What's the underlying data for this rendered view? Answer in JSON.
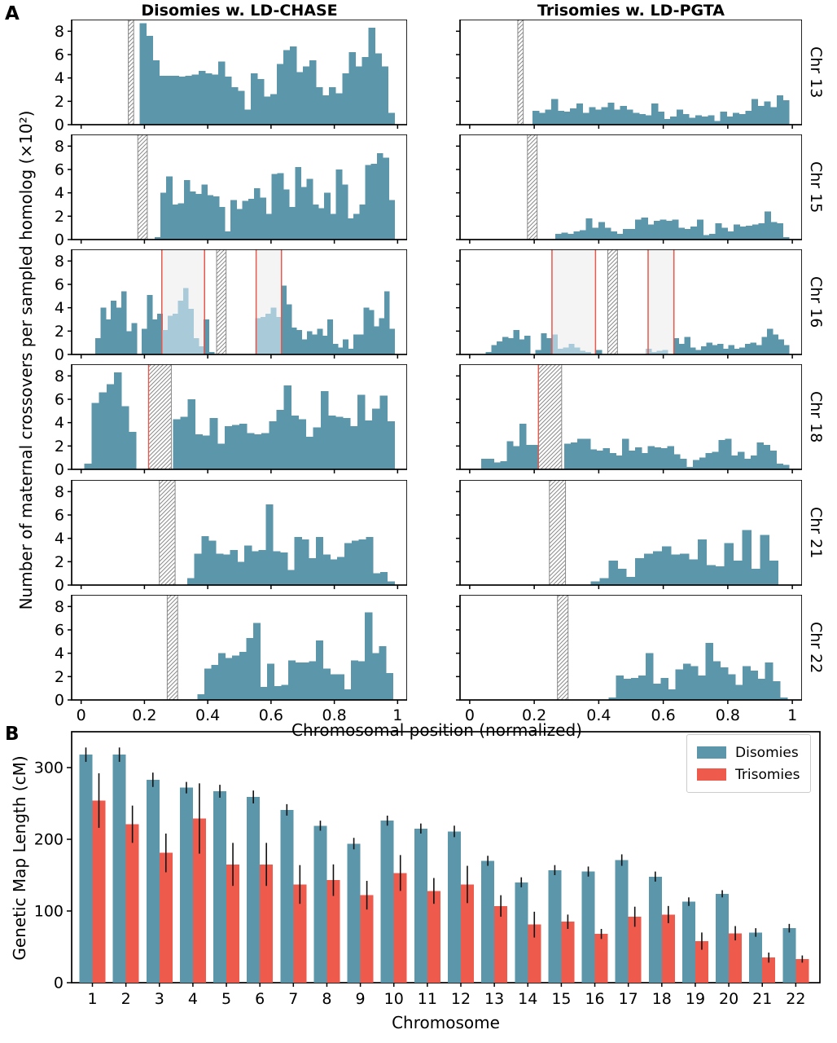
{
  "figure": {
    "panels": {
      "a": "A",
      "b": "B"
    }
  },
  "colors": {
    "disomy_blue": "#5C96AB",
    "light_blue": "#A9CAD8",
    "trisomy_red": "#EE5A4C",
    "red_line": "#E8584C",
    "hatch_gray": "#8A8A8A",
    "highlight_bg": "#F4F4F4",
    "spine_black": "#000000"
  },
  "chart_data": [
    {
      "id": "panel-a",
      "type": "histogram-grid",
      "columns": [
        "Disomies w. LD-CHASE",
        "Trisomies w. LD-PGTA"
      ],
      "x_label": "Chromosomal position (normalized)",
      "y_label": "Number of maternal crossovers per sampled homolog (×10²)",
      "xlim": [
        -0.03,
        1.03
      ],
      "ylim": [
        0,
        9
      ],
      "x_ticks": [
        0,
        0.2,
        0.4,
        0.6,
        0.8,
        1
      ],
      "y_ticks": [
        0,
        2,
        4,
        6,
        8
      ],
      "rows": [
        {
          "label": "Chr 13",
          "centromere_band": [
            0.149,
            0.166
          ],
          "disomies": {
            "start": 0.185,
            "end": 0.99,
            "values": [
              8.7,
              7.6,
              5.5,
              4.2,
              4.2,
              4.2,
              4.1,
              4.2,
              4.3,
              4.6,
              4.4,
              4.3,
              5.4,
              4.1,
              3.2,
              2.9,
              1.3,
              4.4,
              3.9,
              2.4,
              2.6,
              5.2,
              6.4,
              6.7,
              4.5,
              5.0,
              5.5,
              3.2,
              2.5,
              3.2,
              2.7,
              4.4,
              6.2,
              5.0,
              5.8,
              8.3,
              6.1,
              5.0,
              1.0
            ]
          },
          "trisomies": {
            "start": 0.195,
            "end": 0.99,
            "values": [
              1.2,
              1.0,
              1.3,
              2.2,
              1.2,
              1.1,
              1.4,
              1.8,
              1.0,
              1.5,
              1.3,
              1.5,
              1.9,
              1.3,
              1.6,
              1.3,
              1.0,
              0.9,
              0.8,
              1.8,
              1.1,
              0.5,
              0.7,
              1.3,
              0.9,
              0.6,
              0.8,
              0.7,
              0.8,
              0.3,
              1.1,
              0.7,
              1.0,
              0.9,
              1.2,
              2.2,
              1.6,
              2.0,
              1.5,
              2.5,
              2.1
            ]
          }
        },
        {
          "label": "Chr 15",
          "centromere_band": [
            0.179,
            0.209
          ],
          "disomies": {
            "start": 0.232,
            "end": 0.99,
            "values": [
              0.2,
              4.0,
              5.4,
              3.0,
              3.1,
              5.1,
              4.1,
              3.9,
              4.7,
              3.8,
              3.7,
              2.8,
              0.7,
              3.4,
              2.6,
              3.3,
              3.5,
              4.4,
              3.6,
              2.2,
              5.6,
              5.7,
              4.3,
              2.8,
              6.2,
              4.5,
              5.2,
              3.0,
              2.7,
              4.0,
              2.2,
              6.0,
              4.7,
              1.8,
              2.2,
              3.0,
              6.4,
              6.5,
              7.4,
              7.0,
              3.4
            ]
          },
          "trisomies": {
            "start": 0.265,
            "end": 0.99,
            "values": [
              0.5,
              0.6,
              0.5,
              0.7,
              0.8,
              1.8,
              1.0,
              1.5,
              1.0,
              0.7,
              0.5,
              0.9,
              0.9,
              1.7,
              1.9,
              1.3,
              1.6,
              1.7,
              1.6,
              1.7,
              1.0,
              0.9,
              1.1,
              1.7,
              0.4,
              0.5,
              1.4,
              1.0,
              0.7,
              1.3,
              1.1,
              1.2,
              1.3,
              1.4,
              2.4,
              1.5,
              1.4,
              0.2
            ]
          }
        },
        {
          "label": "Chr 16",
          "centromere_band": [
            0.428,
            0.458
          ],
          "highlight_regions": [
            [
              0.255,
              0.39
            ],
            [
              0.553,
              0.633
            ]
          ],
          "disomies": {
            "start": 0.045,
            "end": 0.99,
            "values": [
              1.4,
              4.0,
              3.0,
              4.6,
              4.0,
              5.4,
              2.0,
              2.7,
              0,
              2.2,
              5.1,
              3.0,
              3.5,
              2.1,
              3.3,
              3.5,
              4.6,
              5.7,
              3.9,
              1.4,
              0.7,
              3.0,
              0.2,
              0,
              0,
              0,
              0,
              0,
              0,
              0,
              0,
              3.1,
              3.2,
              3.5,
              4.0,
              3.2,
              5.9,
              4.3,
              2.3,
              2.1,
              1.3,
              2.0,
              1.7,
              2.2,
              1.6,
              3.0,
              0.9,
              0.6,
              1.3,
              0.5,
              1.7,
              1.7,
              4.0,
              3.8,
              2.4,
              3.1,
              5.4,
              2.2
            ]
          },
          "trisomies": {
            "start": 0.05,
            "end": 0.99,
            "values": [
              0.2,
              0.8,
              1.1,
              1.5,
              1.4,
              2.1,
              1.3,
              1.6,
              0,
              0.4,
              1.8,
              1.4,
              1.7,
              0.5,
              0.6,
              0.9,
              0.6,
              0.3,
              0.2,
              0,
              0.4,
              0,
              0,
              0,
              0,
              0,
              0,
              0,
              0,
              0.5,
              0.2,
              0.3,
              0.4,
              0,
              1.4,
              0.9,
              1.5,
              0.6,
              0.4,
              0.7,
              1.0,
              0.8,
              0.9,
              0.5,
              0.8,
              0.5,
              0.6,
              0.9,
              1.0,
              0.8,
              1.5,
              2.2,
              1.7,
              1.3,
              0.8
            ]
          }
        },
        {
          "label": "Chr 18",
          "centromere_band": [
            0.213,
            0.285
          ],
          "band_red_left": true,
          "disomies": {
            "start": 0.01,
            "end": 0.99,
            "values": [
              0.5,
              5.7,
              6.6,
              7.3,
              8.3,
              5.4,
              3.2,
              0,
              0,
              0,
              0,
              0,
              4.3,
              4.5,
              6.0,
              3.0,
              2.9,
              4.4,
              2.2,
              3.7,
              3.8,
              3.9,
              3.1,
              3.0,
              3.1,
              4.1,
              5.1,
              7.2,
              4.6,
              4.3,
              2.8,
              3.6,
              6.7,
              4.6,
              4.5,
              4.4,
              3.7,
              6.4,
              4.2,
              5.2,
              6.3,
              4.1
            ]
          },
          "trisomies": {
            "start": 0.035,
            "end": 0.99,
            "values": [
              0.9,
              0.9,
              0.6,
              0.7,
              2.4,
              2.0,
              3.9,
              2.1,
              2.1,
              0.6,
              0,
              0,
              0,
              2.2,
              2.3,
              2.6,
              2.6,
              1.7,
              1.6,
              1.8,
              1.4,
              1.2,
              2.6,
              1.6,
              1.9,
              1.4,
              2.0,
              1.9,
              1.8,
              2.0,
              1.3,
              0.9,
              0.2,
              0.8,
              1.0,
              1.4,
              1.5,
              2.5,
              2.6,
              1.2,
              1.5,
              0.9,
              1.2,
              2.3,
              2.1,
              1.6,
              0.5,
              0.4
            ]
          }
        },
        {
          "label": "Chr 21",
          "centromere_band": [
            0.247,
            0.297
          ],
          "disomies": {
            "start": 0.335,
            "end": 0.99,
            "values": [
              0.6,
              2.7,
              4.2,
              3.8,
              2.7,
              2.6,
              3.0,
              2.0,
              3.4,
              2.9,
              3.0,
              6.9,
              2.9,
              2.8,
              1.3,
              4.1,
              3.9,
              2.3,
              4.1,
              2.6,
              2.2,
              2.4,
              3.6,
              3.8,
              3.9,
              4.1,
              1.0,
              1.1,
              0.3
            ]
          },
          "trisomies": {
            "start": 0.375,
            "end": 0.955,
            "values": [
              0.3,
              0.6,
              2.1,
              1.4,
              0.7,
              2.3,
              2.7,
              2.9,
              3.3,
              2.6,
              2.7,
              2.2,
              3.9,
              1.7,
              1.6,
              3.6,
              2.1,
              4.7,
              1.4,
              4.3,
              2.1
            ]
          }
        },
        {
          "label": "Chr 22",
          "centromere_band": [
            0.272,
            0.305
          ],
          "disomies": {
            "start": 0.367,
            "end": 0.985,
            "values": [
              0.5,
              2.7,
              3.0,
              4.0,
              3.6,
              3.8,
              4.1,
              5.3,
              6.6,
              1.1,
              3.1,
              1.2,
              1.3,
              3.4,
              3.2,
              3.2,
              3.3,
              5.1,
              2.7,
              2.2,
              2.2,
              0.9,
              3.4,
              3.3,
              7.5,
              4.0,
              4.6,
              2.3
            ]
          },
          "trisomies": {
            "start": 0.43,
            "end": 0.985,
            "values": [
              0.2,
              2.1,
              1.8,
              1.9,
              2.1,
              4.0,
              1.4,
              1.9,
              0.9,
              2.6,
              3.1,
              2.9,
              2.1,
              4.9,
              3.3,
              2.8,
              2.2,
              1.3,
              2.9,
              2.5,
              1.8,
              3.2,
              1.6,
              0.2
            ]
          }
        }
      ]
    },
    {
      "id": "panel-b",
      "type": "bar",
      "x_label": "Chromosome",
      "y_label": "Genetic Map Length (cM)",
      "categories": [
        1,
        2,
        3,
        4,
        5,
        6,
        7,
        8,
        9,
        10,
        11,
        12,
        13,
        14,
        15,
        16,
        17,
        18,
        19,
        20,
        21,
        22
      ],
      "ylim": [
        0,
        350
      ],
      "y_ticks": [
        0,
        100,
        200,
        300
      ],
      "legend_position": "upper right",
      "series": [
        {
          "name": "Disomies",
          "color": "#5C96AB",
          "values": [
            318,
            318,
            283,
            272,
            267,
            259,
            241,
            219,
            194,
            226,
            215,
            211,
            170,
            140,
            157,
            155,
            171,
            148,
            113,
            124,
            70,
            76
          ],
          "errors": [
            10,
            10,
            10,
            8,
            9,
            9,
            8,
            7,
            8,
            7,
            7,
            8,
            7,
            7,
            7,
            7,
            8,
            7,
            6,
            5,
            6,
            6
          ]
        },
        {
          "name": "Trisomies",
          "color": "#EE5A4C",
          "values": [
            254,
            221,
            181,
            229,
            165,
            165,
            137,
            143,
            122,
            153,
            128,
            137,
            107,
            81,
            85,
            68,
            92,
            95,
            58,
            69,
            35,
            33
          ],
          "errors": [
            38,
            26,
            27,
            49,
            30,
            30,
            27,
            22,
            20,
            25,
            18,
            26,
            15,
            18,
            10,
            7,
            14,
            12,
            12,
            10,
            7,
            5
          ]
        }
      ]
    }
  ]
}
